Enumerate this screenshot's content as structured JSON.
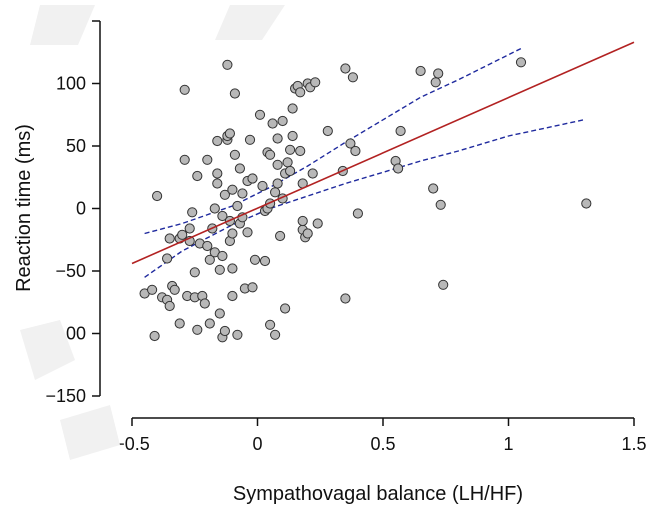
{
  "chart_data": {
    "type": "scatter",
    "title": "",
    "xlabel": "Sympathovagal balance (LH/HF)",
    "ylabel": "Reaction time (ms)",
    "xlim": [
      -0.5,
      1.5
    ],
    "ylim": [
      -150,
      150
    ],
    "x_ticks": [
      -0.5,
      0,
      0.5,
      1,
      1.5
    ],
    "x_tick_labels": [
      "−0.5",
      "0",
      "0.5",
      "1",
      "1.5"
    ],
    "y_ticks": [
      -150,
      -100,
      -50,
      0,
      50,
      100,
      150
    ],
    "y_tick_labels": [
      "−150",
      "−100",
      "−50",
      "0",
      "50",
      "100",
      "150"
    ],
    "grid": false,
    "colors": {
      "points_fill": "#b8b8b8",
      "points_stroke": "#333333",
      "fit_line": "#b22222",
      "ci_lines": "#1f2a9e",
      "axis": "#111111"
    },
    "fit_line": {
      "x": [
        -0.5,
        1.5
      ],
      "y": [
        -44,
        133
      ]
    },
    "ci_upper": {
      "x": [
        -0.45,
        -0.3,
        -0.1,
        0.05,
        0.2,
        0.35,
        0.5,
        0.65,
        0.8,
        1.05
      ],
      "y": [
        -20,
        -12,
        2,
        17,
        34,
        53,
        71,
        89,
        103,
        128
      ]
    },
    "ci_lower": {
      "x": [
        -0.45,
        -0.3,
        -0.1,
        0.05,
        0.2,
        0.35,
        0.5,
        0.65,
        0.8,
        1.0,
        1.3
      ],
      "y": [
        -55,
        -34,
        -13,
        0,
        10,
        20,
        29,
        38,
        46,
        58,
        71
      ]
    },
    "series": [
      {
        "points": [
          [
            -0.45,
            -68
          ],
          [
            -0.42,
            -65
          ],
          [
            -0.41,
            -102
          ],
          [
            -0.4,
            10
          ],
          [
            -0.38,
            -71
          ],
          [
            -0.36,
            -73
          ],
          [
            -0.35,
            -78
          ],
          [
            -0.36,
            -40
          ],
          [
            -0.35,
            -24
          ],
          [
            -0.34,
            -62
          ],
          [
            -0.33,
            -65
          ],
          [
            -0.31,
            -92
          ],
          [
            -0.31,
            -24
          ],
          [
            -0.3,
            -21
          ],
          [
            -0.29,
            39
          ],
          [
            -0.29,
            95
          ],
          [
            -0.28,
            -70
          ],
          [
            -0.27,
            -26
          ],
          [
            -0.27,
            -16
          ],
          [
            -0.26,
            -3
          ],
          [
            -0.25,
            -51
          ],
          [
            -0.25,
            -71
          ],
          [
            -0.24,
            -97
          ],
          [
            -0.24,
            26
          ],
          [
            -0.23,
            -28
          ],
          [
            -0.22,
            -70
          ],
          [
            -0.21,
            -76
          ],
          [
            -0.2,
            39
          ],
          [
            -0.2,
            -30
          ],
          [
            -0.19,
            -92
          ],
          [
            -0.19,
            -41
          ],
          [
            -0.18,
            -16
          ],
          [
            -0.17,
            0
          ],
          [
            -0.17,
            -35
          ],
          [
            -0.16,
            28
          ],
          [
            -0.16,
            54
          ],
          [
            -0.16,
            20
          ],
          [
            -0.15,
            -49
          ],
          [
            -0.15,
            -84
          ],
          [
            -0.14,
            -38
          ],
          [
            -0.14,
            -6
          ],
          [
            -0.14,
            -103
          ],
          [
            -0.13,
            -98
          ],
          [
            -0.13,
            11
          ],
          [
            -0.12,
            55
          ],
          [
            -0.12,
            58
          ],
          [
            -0.12,
            115
          ],
          [
            -0.11,
            60
          ],
          [
            -0.11,
            -26
          ],
          [
            -0.11,
            -10
          ],
          [
            -0.1,
            -20
          ],
          [
            -0.1,
            15
          ],
          [
            -0.1,
            -48
          ],
          [
            -0.1,
            -70
          ],
          [
            -0.09,
            92
          ],
          [
            -0.09,
            43
          ],
          [
            -0.08,
            -101
          ],
          [
            -0.08,
            2
          ],
          [
            -0.07,
            32
          ],
          [
            -0.07,
            -12
          ],
          [
            -0.06,
            -7
          ],
          [
            -0.06,
            12
          ],
          [
            -0.05,
            -64
          ],
          [
            -0.04,
            -19
          ],
          [
            -0.04,
            22
          ],
          [
            -0.03,
            55
          ],
          [
            -0.02,
            -63
          ],
          [
            -0.02,
            24
          ],
          [
            -0.01,
            -41
          ],
          [
            0.01,
            75
          ],
          [
            0.02,
            18
          ],
          [
            0.03,
            -42
          ],
          [
            0.03,
            -2
          ],
          [
            0.04,
            0
          ],
          [
            0.04,
            45
          ],
          [
            0.05,
            4
          ],
          [
            0.05,
            43
          ],
          [
            0.05,
            -93
          ],
          [
            0.06,
            68
          ],
          [
            0.07,
            -101
          ],
          [
            0.07,
            13
          ],
          [
            0.08,
            35
          ],
          [
            0.08,
            56
          ],
          [
            0.08,
            20
          ],
          [
            0.09,
            -22
          ],
          [
            0.1,
            8
          ],
          [
            0.1,
            70
          ],
          [
            0.11,
            28
          ],
          [
            0.11,
            -80
          ],
          [
            0.12,
            37
          ],
          [
            0.13,
            47
          ],
          [
            0.13,
            30
          ],
          [
            0.14,
            58
          ],
          [
            0.14,
            80
          ],
          [
            0.15,
            96
          ],
          [
            0.16,
            98
          ],
          [
            0.17,
            93
          ],
          [
            0.17,
            46
          ],
          [
            0.18,
            -17
          ],
          [
            0.18,
            -10
          ],
          [
            0.18,
            20
          ],
          [
            0.19,
            -23
          ],
          [
            0.2,
            -20
          ],
          [
            0.2,
            100
          ],
          [
            0.21,
            97
          ],
          [
            0.22,
            28
          ],
          [
            0.23,
            101
          ],
          [
            0.24,
            -12
          ],
          [
            0.28,
            62
          ],
          [
            0.34,
            30
          ],
          [
            0.35,
            -72
          ],
          [
            0.35,
            112
          ],
          [
            0.37,
            52
          ],
          [
            0.38,
            105
          ],
          [
            0.39,
            46
          ],
          [
            0.4,
            -4
          ],
          [
            0.55,
            38
          ],
          [
            0.56,
            32
          ],
          [
            0.57,
            62
          ],
          [
            0.65,
            110
          ],
          [
            0.7,
            16
          ],
          [
            0.71,
            101
          ],
          [
            0.72,
            108
          ],
          [
            0.73,
            3
          ],
          [
            0.74,
            -61
          ],
          [
            1.05,
            117
          ],
          [
            1.31,
            4
          ]
        ]
      }
    ]
  }
}
